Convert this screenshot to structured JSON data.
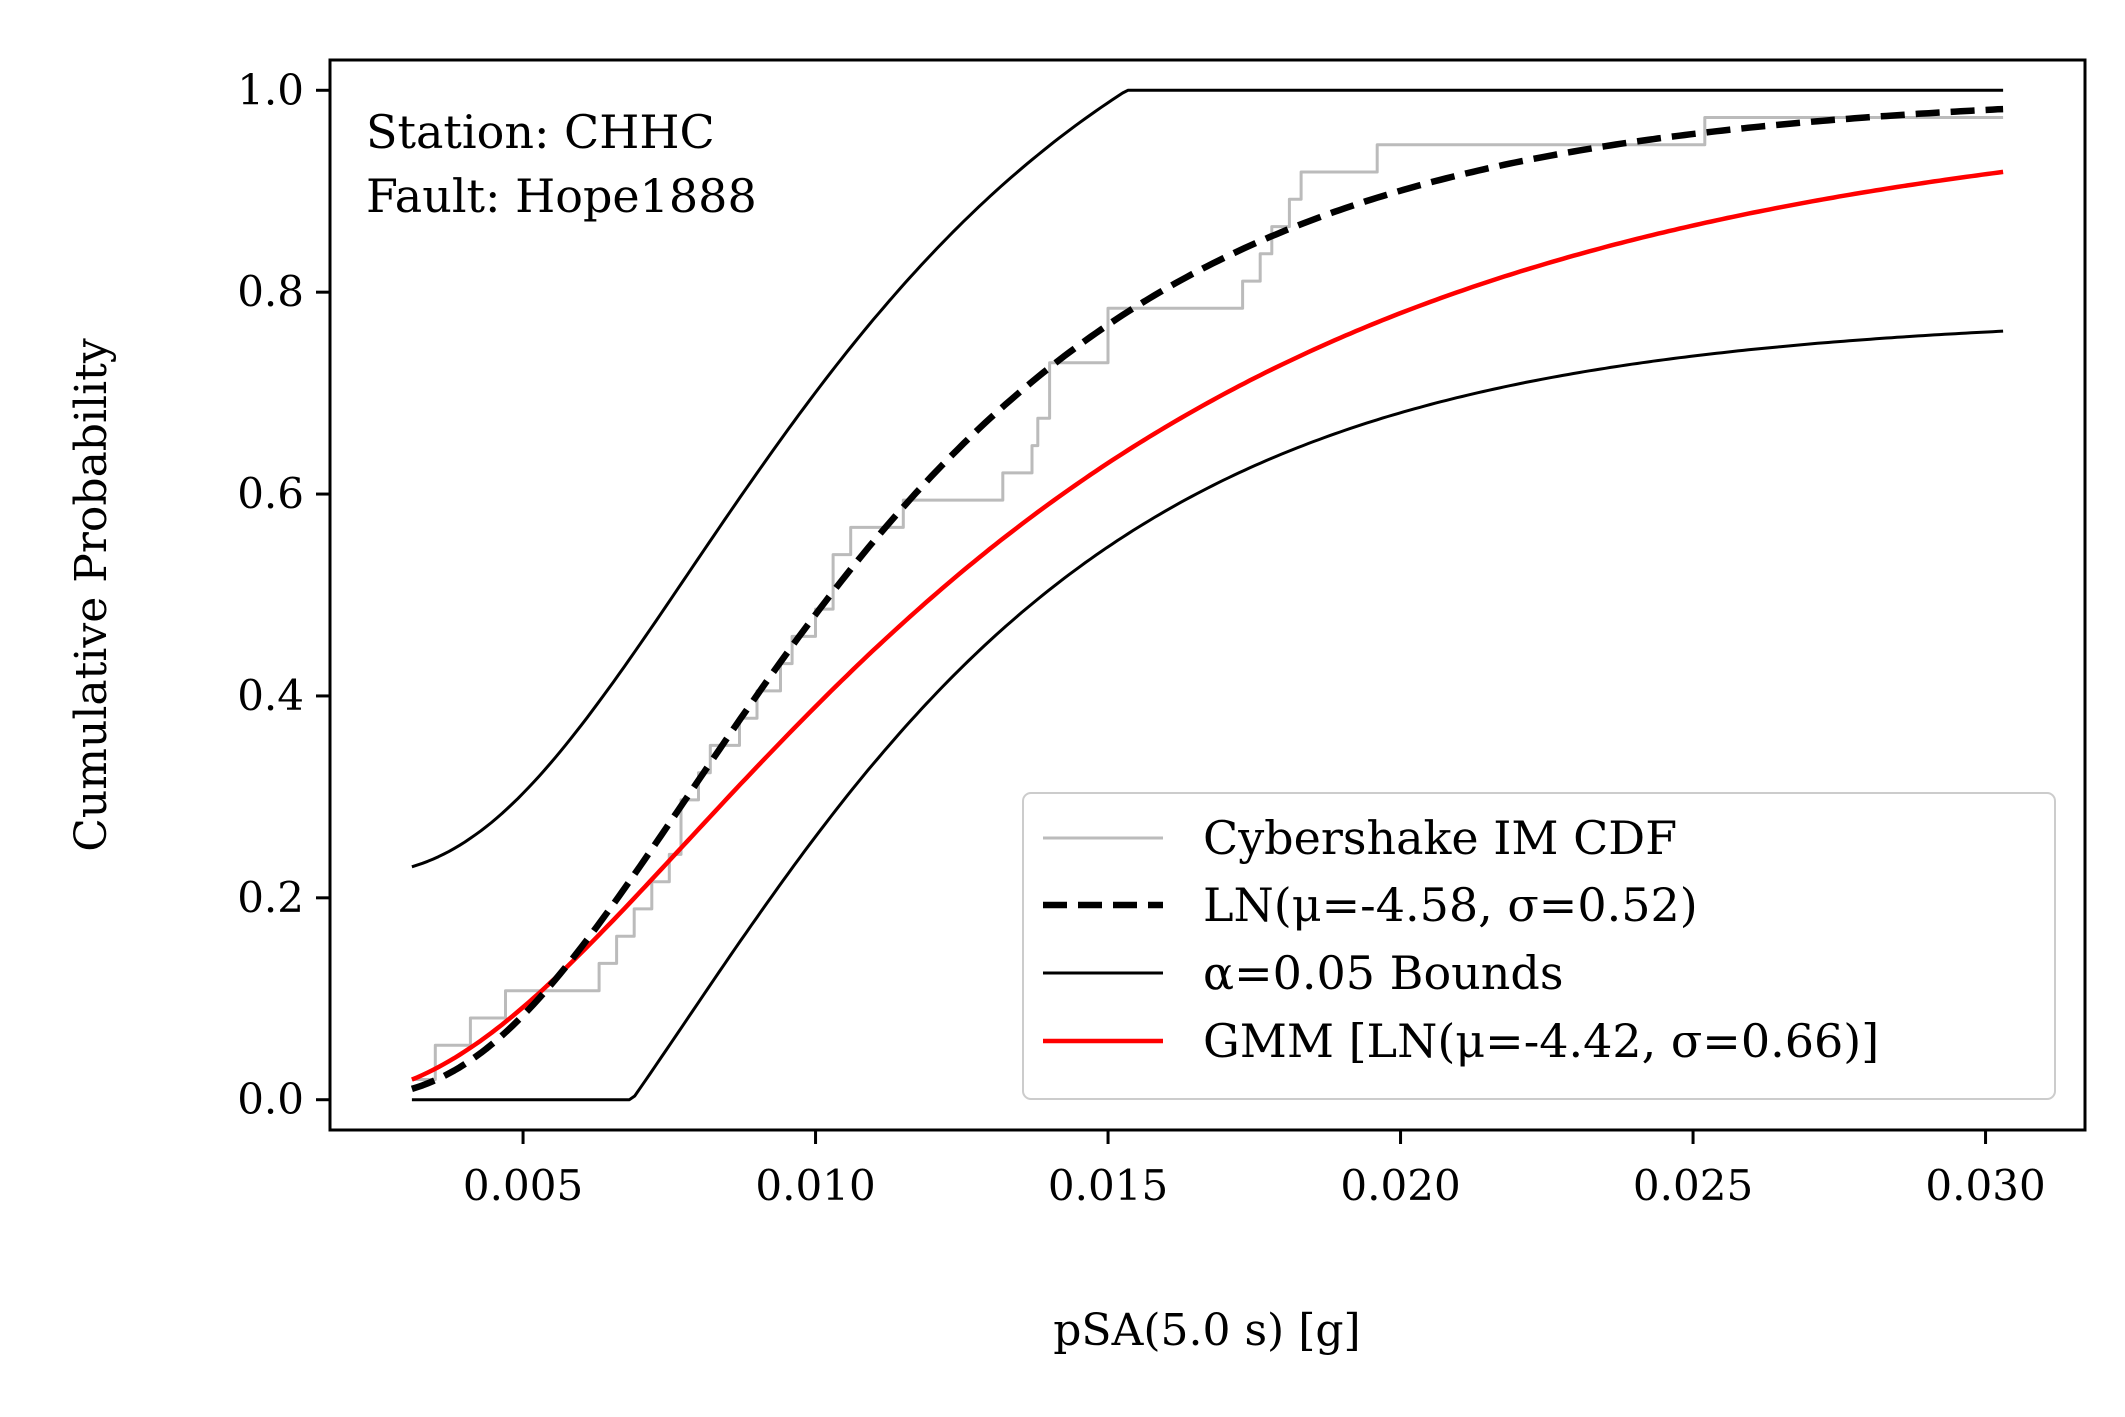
{
  "chart_data": {
    "type": "line",
    "annotation": [
      "Station: CHHC",
      "Fault: Hope1888"
    ],
    "xlabel": "pSA(5.0 s) [g]",
    "ylabel": "Cumulative Probability",
    "xlim": [
      0.0017,
      0.0317
    ],
    "ylim": [
      -0.03,
      1.03
    ],
    "xticks": [
      0.005,
      0.01,
      0.015,
      0.02,
      0.025,
      0.03
    ],
    "xtick_labels": [
      "0.005",
      "0.010",
      "0.015",
      "0.020",
      "0.025",
      "0.030"
    ],
    "yticks": [
      0.0,
      0.2,
      0.4,
      0.6,
      0.8,
      1.0
    ],
    "ytick_labels": [
      "0.0",
      "0.2",
      "0.4",
      "0.6",
      "0.8",
      "1.0"
    ],
    "grid": false,
    "legend_position": "lower-right",
    "legend": [
      {
        "label": "Cybershake IM CDF",
        "color": "#bbbbbb",
        "style": "solid"
      },
      {
        "label": "LN(μ=-4.58, σ=0.52)",
        "color": "#000000",
        "style": "dashed"
      },
      {
        "label": "α=0.05 Bounds",
        "color": "#000000",
        "style": "solid"
      },
      {
        "label": "GMM [LN(μ=-4.42, σ=0.66)]",
        "color": "#ff0000",
        "style": "solid"
      }
    ],
    "series": [
      {
        "name": "Cybershake IM CDF",
        "kind": "step",
        "color": "#bbbbbb",
        "x": [
          0.0031,
          0.0035,
          0.0041,
          0.0047,
          0.0056,
          0.0063,
          0.0066,
          0.0069,
          0.0072,
          0.0075,
          0.0077,
          0.008,
          0.0082,
          0.0087,
          0.009,
          0.0094,
          0.0096,
          0.01,
          0.0103,
          0.0106,
          0.0111,
          0.0115,
          0.0118,
          0.0122,
          0.0127,
          0.0132,
          0.0137,
          0.0138,
          0.014,
          0.0145,
          0.015,
          0.016,
          0.017,
          0.0173,
          0.0176,
          0.0178,
          0.0181,
          0.0183,
          0.0196,
          0.0252,
          0.0303
        ],
        "y": [
          0.02,
          0.054,
          0.081,
          0.108,
          0.108,
          0.135,
          0.162,
          0.189,
          0.216,
          0.243,
          0.297,
          0.324,
          0.351,
          0.378,
          0.405,
          0.432,
          0.459,
          0.486,
          0.54,
          0.567,
          0.567,
          0.594,
          0.594,
          0.594,
          0.594,
          0.621,
          0.648,
          0.675,
          0.73,
          0.73,
          0.784,
          0.784,
          0.784,
          0.811,
          0.838,
          0.865,
          0.892,
          0.919,
          0.946,
          0.973,
          0.973
        ]
      },
      {
        "name": "LN(μ=-4.58, σ=0.52)",
        "kind": "lognormal-cdf",
        "mu": -4.58,
        "sigma": 0.52,
        "x_range": [
          0.0031,
          0.0303
        ],
        "color": "#000000",
        "style": "dashed"
      },
      {
        "name": "α=0.05 Bounds (upper)",
        "kind": "lognormal-cdf-offset",
        "mu": -4.58,
        "sigma": 0.52,
        "offset": 0.22,
        "x_range": [
          0.0031,
          0.0303
        ],
        "color": "#000000",
        "style": "solid"
      },
      {
        "name": "α=0.05 Bounds (lower)",
        "kind": "lognormal-cdf-offset",
        "mu": -4.58,
        "sigma": 0.52,
        "offset": -0.22,
        "x_range": [
          0.0031,
          0.0303
        ],
        "color": "#000000",
        "style": "solid"
      },
      {
        "name": "GMM [LN(μ=-4.42, σ=0.66)]",
        "kind": "lognormal-cdf",
        "mu": -4.42,
        "sigma": 0.66,
        "x_range": [
          0.0031,
          0.0303
        ],
        "color": "#ff0000",
        "style": "solid"
      }
    ]
  }
}
